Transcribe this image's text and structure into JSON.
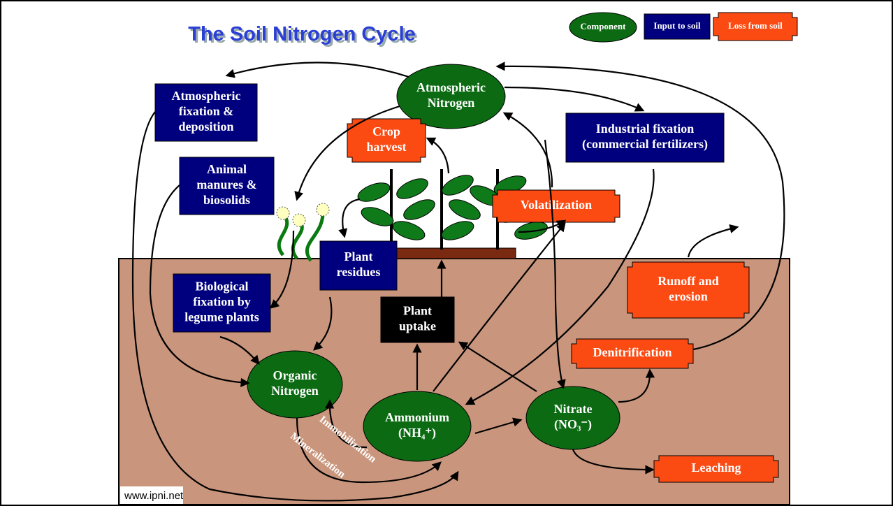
{
  "title": "The Soil Nitrogen Cycle",
  "legend": [
    {
      "label": "Component"
    },
    {
      "label": "Input to soil"
    },
    {
      "label": "Loss from soil"
    }
  ],
  "nodes": [
    {
      "lines": [
        "Atmospheric",
        "Nitrogen"
      ]
    },
    {
      "lines": [
        "Atmospheric",
        "fixation &",
        "deposition"
      ]
    },
    {
      "lines": [
        "Crop",
        "harvest"
      ]
    },
    {
      "lines": [
        "Industrial fixation",
        "(commercial fertilizers)"
      ]
    },
    {
      "lines": [
        "Animal",
        "manures &",
        "biosolids"
      ]
    },
    {
      "lines": [
        "Volatilization"
      ]
    },
    {
      "lines": [
        "Plant",
        "residues"
      ]
    },
    {
      "lines": [
        "Biological",
        "fixation by",
        "legume plants"
      ]
    },
    {
      "lines": [
        "Plant",
        "uptake"
      ]
    },
    {
      "lines": [
        "Runoff and",
        "erosion"
      ]
    },
    {
      "lines": [
        "Denitrification"
      ]
    },
    {
      "lines": [
        "Organic",
        "Nitrogen"
      ]
    },
    {
      "lines": [
        "Ammonium",
        "(NH₄⁺)"
      ]
    },
    {
      "lines": [
        "Nitrate",
        "(NO₃⁻)"
      ]
    },
    {
      "lines": [
        "Leaching"
      ]
    }
  ],
  "annotations": [
    "Immobilization",
    "Mineralization"
  ],
  "source": "www.ipni.net"
}
